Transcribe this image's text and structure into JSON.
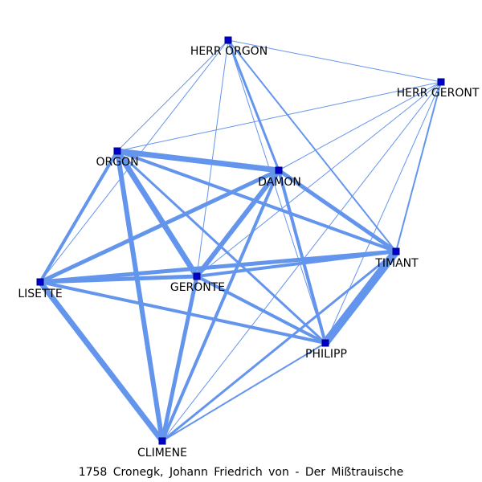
{
  "caption": "1758  Cronegk,  Johann  Friedrich  von  -  Der  Mißtrauische",
  "colors": {
    "edge": "#6495ED",
    "node_fill": "#0000CD",
    "node_stroke": "#000080"
  },
  "nodes": [
    {
      "id": "herr_orgon",
      "label": "HERR ORGON"
    },
    {
      "id": "herr_geront",
      "label": "HERR GERONT"
    },
    {
      "id": "orgon",
      "label": "ORGON"
    },
    {
      "id": "damon",
      "label": "DAMON"
    },
    {
      "id": "timant",
      "label": "TIMANT"
    },
    {
      "id": "lisette",
      "label": "LISETTE"
    },
    {
      "id": "geronte",
      "label": "GERONTE"
    },
    {
      "id": "philipp",
      "label": "PHILIPP"
    },
    {
      "id": "climene",
      "label": "CLIMENE"
    }
  ],
  "edges": [
    {
      "source": "herr_orgon",
      "target": "herr_geront",
      "weight": 1
    },
    {
      "source": "herr_orgon",
      "target": "orgon",
      "weight": 1
    },
    {
      "source": "herr_orgon",
      "target": "lisette",
      "weight": 1
    },
    {
      "source": "herr_orgon",
      "target": "geronte",
      "weight": 1
    },
    {
      "source": "herr_orgon",
      "target": "damon",
      "weight": 3
    },
    {
      "source": "herr_orgon",
      "target": "timant",
      "weight": 2
    },
    {
      "source": "herr_orgon",
      "target": "philipp",
      "weight": 1
    },
    {
      "source": "herr_geront",
      "target": "orgon",
      "weight": 1
    },
    {
      "source": "herr_geront",
      "target": "damon",
      "weight": 1
    },
    {
      "source": "herr_geront",
      "target": "geronte",
      "weight": 1
    },
    {
      "source": "herr_geront",
      "target": "timant",
      "weight": 2
    },
    {
      "source": "herr_geront",
      "target": "philipp",
      "weight": 1
    },
    {
      "source": "herr_geront",
      "target": "climene",
      "weight": 1
    },
    {
      "source": "orgon",
      "target": "damon",
      "weight": 7
    },
    {
      "source": "orgon",
      "target": "timant",
      "weight": 4
    },
    {
      "source": "orgon",
      "target": "lisette",
      "weight": 4
    },
    {
      "source": "orgon",
      "target": "geronte",
      "weight": 7
    },
    {
      "source": "orgon",
      "target": "philipp",
      "weight": 3
    },
    {
      "source": "orgon",
      "target": "climene",
      "weight": 6
    },
    {
      "source": "damon",
      "target": "timant",
      "weight": 5
    },
    {
      "source": "damon",
      "target": "lisette",
      "weight": 5
    },
    {
      "source": "damon",
      "target": "geronte",
      "weight": 6
    },
    {
      "source": "damon",
      "target": "philipp",
      "weight": 4
    },
    {
      "source": "damon",
      "target": "climene",
      "weight": 4
    },
    {
      "source": "timant",
      "target": "lisette",
      "weight": 5
    },
    {
      "source": "timant",
      "target": "geronte",
      "weight": 4
    },
    {
      "source": "timant",
      "target": "philipp",
      "weight": 10
    },
    {
      "source": "timant",
      "target": "climene",
      "weight": 3
    },
    {
      "source": "lisette",
      "target": "geronte",
      "weight": 5
    },
    {
      "source": "lisette",
      "target": "philipp",
      "weight": 4
    },
    {
      "source": "lisette",
      "target": "climene",
      "weight": 7
    },
    {
      "source": "geronte",
      "target": "philipp",
      "weight": 4
    },
    {
      "source": "geronte",
      "target": "climene",
      "weight": 5
    },
    {
      "source": "philipp",
      "target": "climene",
      "weight": 2
    }
  ]
}
